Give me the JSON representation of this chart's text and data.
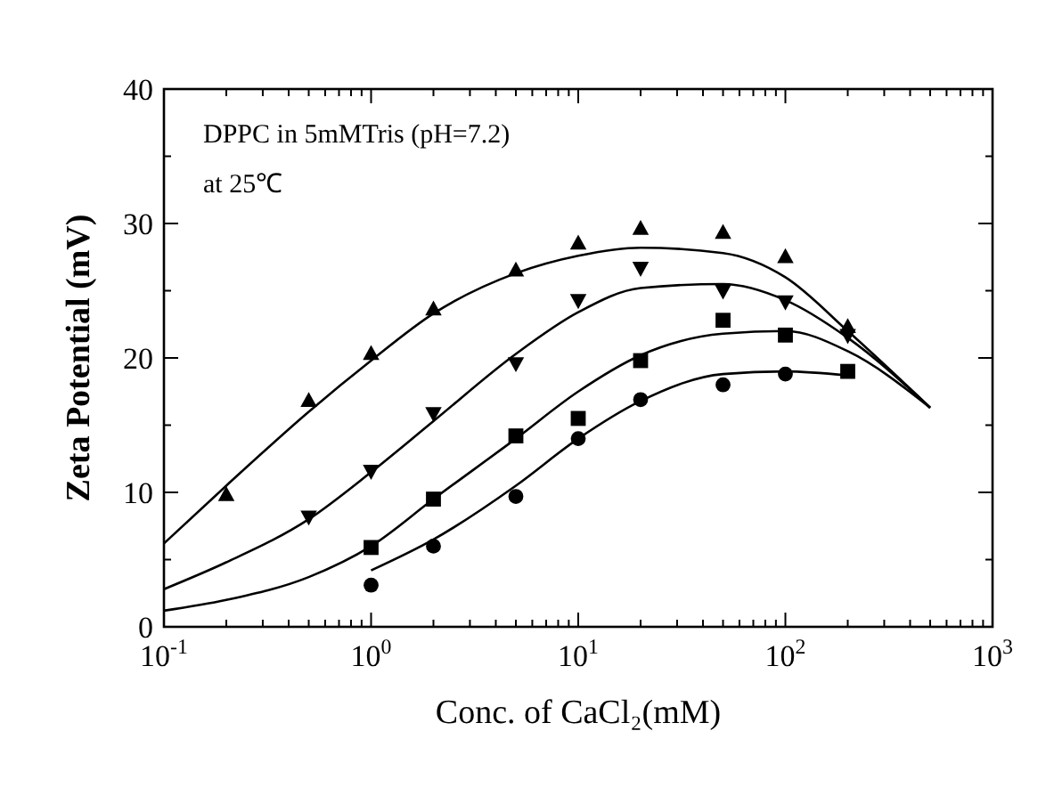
{
  "chart_data": {
    "type": "scatter",
    "xlabel": "Conc. of CaCl₂(mM)",
    "ylabel": "Zeta Potential (mV)",
    "log": "x",
    "xlim": [
      0.1,
      1000
    ],
    "ylim": [
      0,
      40
    ],
    "xticks": [
      {
        "value": 0.1,
        "label": "10$^{-1}$"
      },
      {
        "value": 1,
        "label": "10$^{0}$"
      },
      {
        "value": 10,
        "label": "10$^{1}$"
      },
      {
        "value": 100,
        "label": "10$^{2}$"
      },
      {
        "value": 1000,
        "label": "10$^{3}$"
      }
    ],
    "yticks": [
      0,
      10,
      20,
      30,
      40
    ],
    "grid": false,
    "annotations": [
      "DPPC in 5mMTris (pH=7.2)",
      "at 25℃"
    ],
    "series": [
      {
        "marker": "triangle",
        "color": "#000000",
        "x": [
          0.2,
          0.5,
          1,
          2,
          5,
          10,
          20,
          50,
          100,
          200
        ],
        "values": [
          9.8,
          16.8,
          20.3,
          23.6,
          26.5,
          28.5,
          29.6,
          29.3,
          27.5,
          22.3
        ]
      },
      {
        "marker": "triangle-down",
        "color": "#000000",
        "x": [
          0.5,
          1,
          2,
          5,
          10,
          20,
          50,
          100,
          200
        ],
        "values": [
          8.2,
          11.6,
          15.9,
          19.6,
          24.3,
          26.7,
          25,
          24.2,
          21.7
        ]
      },
      {
        "marker": "square",
        "color": "#000000",
        "x": [
          1,
          2,
          5,
          10,
          20,
          50,
          100,
          200
        ],
        "values": [
          5.9,
          9.5,
          14.2,
          15.5,
          19.8,
          22.8,
          21.7,
          19
        ]
      },
      {
        "marker": "circle",
        "color": "#000000",
        "x": [
          1,
          2,
          5,
          10,
          20,
          50,
          100
        ],
        "values": [
          3.1,
          6,
          9.7,
          14,
          16.9,
          18,
          18.8
        ]
      },
      {
        "type": "line",
        "color": "#000000",
        "x": [
          0.1,
          0.2,
          0.5,
          1,
          2,
          5,
          10,
          20,
          50,
          100,
          200,
          500
        ],
        "values": [
          6.2,
          10.5,
          16,
          19.8,
          23.3,
          26.3,
          27.6,
          28.2,
          27.8,
          26,
          22,
          16.3
        ]
      },
      {
        "type": "line",
        "color": "#000000",
        "x": [
          0.1,
          0.2,
          0.5,
          1,
          2,
          5,
          10,
          20,
          50,
          100,
          200,
          500
        ],
        "values": [
          2.8,
          4.8,
          8,
          11.5,
          15.3,
          20.3,
          23.4,
          25.2,
          25.5,
          24.3,
          21.5,
          16.3
        ]
      },
      {
        "type": "line",
        "color": "#000000",
        "x": [
          0.1,
          0.2,
          0.5,
          1,
          2,
          5,
          10,
          20,
          50,
          100,
          200,
          500
        ],
        "values": [
          1.2,
          2,
          3.7,
          6,
          9.5,
          14,
          17.5,
          20.2,
          21.8,
          22,
          20.5,
          16.3
        ]
      },
      {
        "type": "line",
        "color": "#000000",
        "x": [
          1,
          2,
          5,
          10,
          20,
          50,
          100,
          200
        ],
        "values": [
          4.2,
          6.5,
          10.5,
          14,
          16.8,
          18.8,
          19,
          18.7
        ]
      }
    ]
  }
}
